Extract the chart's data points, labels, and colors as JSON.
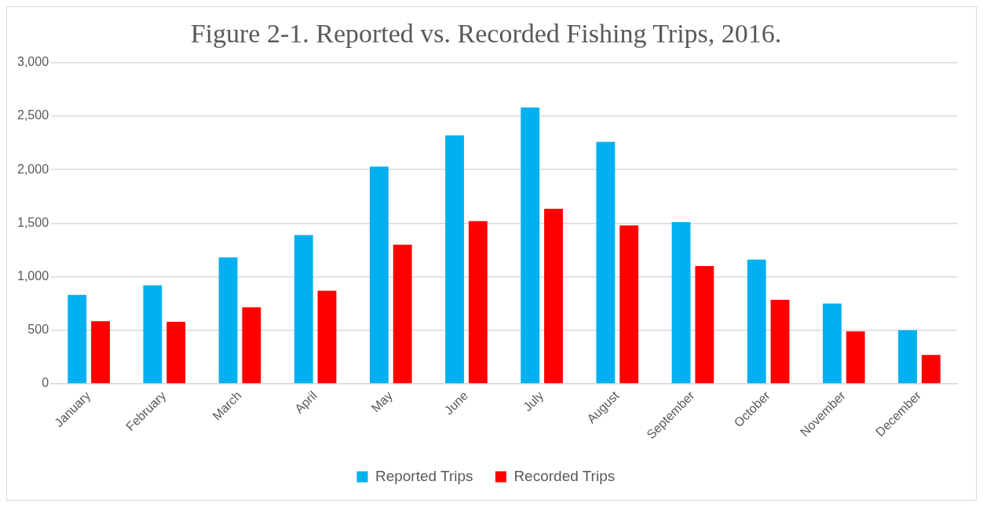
{
  "chart_data": {
    "type": "bar",
    "title": "Figure 2-1. Reported vs. Recorded Fishing Trips, 2016.",
    "categories": [
      "January",
      "February",
      "March",
      "April",
      "May",
      "June",
      "July",
      "August",
      "September",
      "October",
      "November",
      "December"
    ],
    "series": [
      {
        "name": "Reported Trips",
        "color": "#00b0f0",
        "values": [
          830,
          920,
          1180,
          1390,
          2030,
          2320,
          2580,
          2260,
          1510,
          1160,
          750,
          500
        ]
      },
      {
        "name": "Recorded Trips",
        "color": "#ff0000",
        "values": [
          585,
          580,
          715,
          870,
          1300,
          1520,
          1635,
          1480,
          1100,
          785,
          490,
          270
        ]
      }
    ],
    "ylim": [
      0,
      3000
    ],
    "yticks": [
      {
        "value": 0,
        "label": "0"
      },
      {
        "value": 500,
        "label": "500"
      },
      {
        "value": 1000,
        "label": "1,000"
      },
      {
        "value": 1500,
        "label": "1,500"
      },
      {
        "value": 2000,
        "label": "2,000"
      },
      {
        "value": 2500,
        "label": "2,500"
      },
      {
        "value": 3000,
        "label": "3,000"
      }
    ],
    "grid": "y",
    "legend": "bottom"
  }
}
